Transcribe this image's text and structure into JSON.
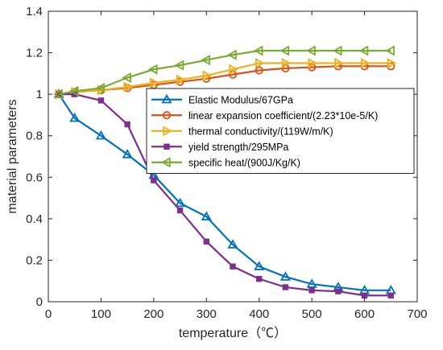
{
  "chart_data": {
    "type": "line",
    "xlabel": "temperature（℃）",
    "ylabel": "material parameters",
    "xlim": [
      0,
      700
    ],
    "ylim": [
      0,
      1.4
    ],
    "xticks": [
      0,
      100,
      200,
      300,
      400,
      500,
      600,
      700
    ],
    "yticks": [
      0,
      0.2,
      0.4,
      0.6,
      0.8,
      1,
      1.2,
      1.4
    ],
    "x": [
      20,
      50,
      100,
      150,
      200,
      250,
      300,
      350,
      400,
      450,
      500,
      550,
      600,
      650
    ],
    "grid": false,
    "legend_position": "right",
    "series": [
      {
        "name": "Elastic Modulus/67GPa",
        "color": "#0072BD",
        "marker": "triangle-up",
        "values": [
          1.0,
          0.885,
          0.8,
          0.71,
          0.61,
          0.475,
          0.41,
          0.275,
          0.17,
          0.12,
          0.085,
          0.07,
          0.055,
          0.055
        ]
      },
      {
        "name": "linear expansion coefficient/(2.23*10e-5/K)",
        "color": "#D95319",
        "marker": "circle",
        "values": [
          1.0,
          1.01,
          1.02,
          1.03,
          1.045,
          1.06,
          1.075,
          1.095,
          1.115,
          1.125,
          1.13,
          1.135,
          1.135,
          1.135
        ]
      },
      {
        "name": "thermal conductivity/(119W/m/K)",
        "color": "#EDB120",
        "marker": "triangle-right",
        "values": [
          1.0,
          1.01,
          1.02,
          1.035,
          1.055,
          1.07,
          1.09,
          1.12,
          1.15,
          1.15,
          1.15,
          1.15,
          1.15,
          1.15
        ]
      },
      {
        "name": "yield strength/295MPa",
        "color": "#7E2F8E",
        "marker": "square",
        "values": [
          1.0,
          1.0,
          0.97,
          0.855,
          0.585,
          0.44,
          0.29,
          0.17,
          0.11,
          0.07,
          0.055,
          0.05,
          0.03,
          0.03
        ]
      },
      {
        "name": "specific heat/(900J/Kg/K)",
        "color": "#77AC30",
        "marker": "triangle-left",
        "values": [
          1.0,
          1.015,
          1.03,
          1.08,
          1.12,
          1.14,
          1.165,
          1.19,
          1.21,
          1.21,
          1.21,
          1.21,
          1.21,
          1.21
        ]
      }
    ]
  }
}
